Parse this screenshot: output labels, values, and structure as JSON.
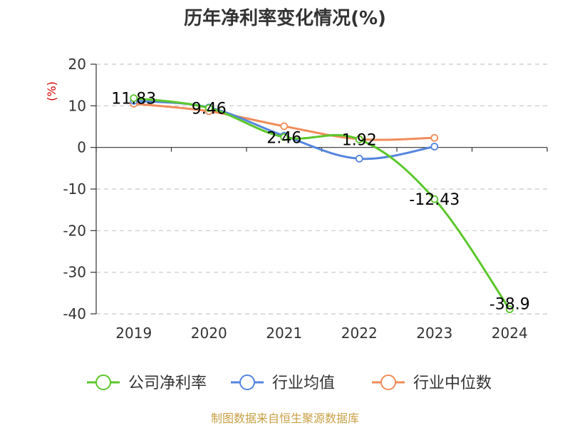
{
  "chart_data": {
    "type": "line",
    "title": "历年净利率变化情况(%)",
    "ylabel": "(%)",
    "xlabel": "",
    "categories": [
      "2019",
      "2020",
      "2021",
      "2022",
      "2023",
      "2024"
    ],
    "ylim": [
      -40,
      20
    ],
    "yticks": [
      20,
      10,
      0,
      -10,
      -20,
      -30,
      -40
    ],
    "grid": true,
    "legend_position": "bottom",
    "series": [
      {
        "name": "公司净利率",
        "color": "#5bc72b",
        "values": [
          11.83,
          9.46,
          2.46,
          1.92,
          -12.43,
          -38.9
        ]
      },
      {
        "name": "行业均值",
        "color": "#5585dd",
        "values": [
          11.2,
          9.6,
          2.8,
          -2.7,
          0.2,
          null
        ]
      },
      {
        "name": "行业中位数",
        "color": "#f08c5a",
        "values": [
          10.5,
          8.7,
          5.1,
          2.0,
          2.3,
          null
        ]
      }
    ],
    "data_labels": [
      {
        "category": "2019",
        "value": 11.83,
        "text": "11.83"
      },
      {
        "category": "2020",
        "value": 9.46,
        "text": "9.46"
      },
      {
        "category": "2021",
        "value": 2.46,
        "text": "2.46"
      },
      {
        "category": "2022",
        "value": 1.92,
        "text": "1.92"
      },
      {
        "category": "2023",
        "value": -12.43,
        "text": "-12.43"
      },
      {
        "category": "2024",
        "value": -38.9,
        "text": "-38.9"
      }
    ],
    "source": "制图数据来自恒生聚源数据库"
  }
}
